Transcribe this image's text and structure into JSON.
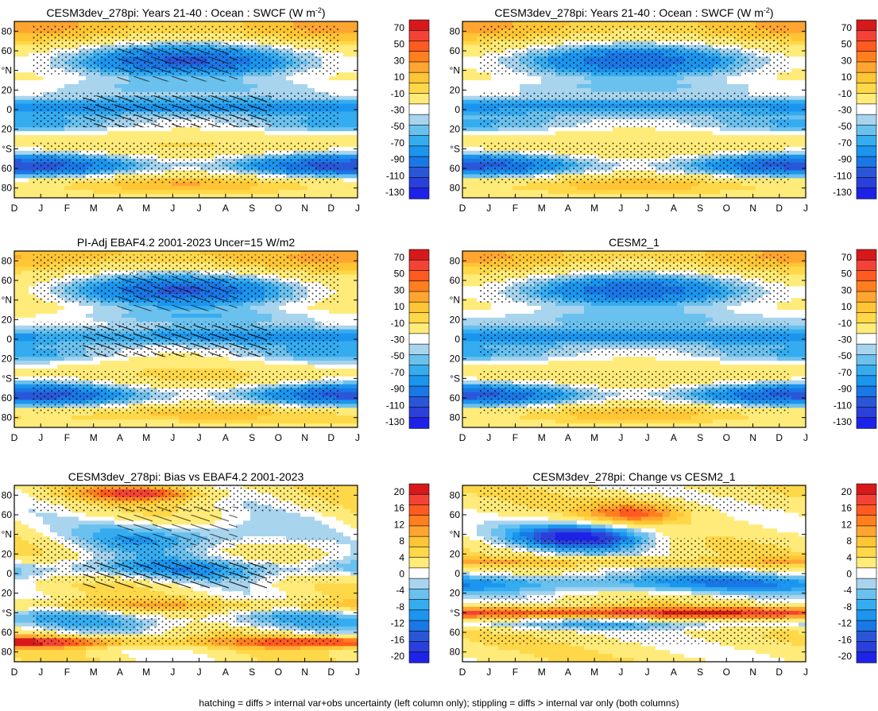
{
  "figure": {
    "footnote": "hatching = diffs > internal var+obs uncertainty (left column only); stippling = diffs > internal var only (both columns)"
  },
  "chart_data": [
    {
      "type": "heatmap",
      "title": "CESM3dev_278pi: Years 21-40 : Ocean : SWCF (W m",
      "title_sup": "-2",
      "title_tail": ")",
      "x_tick_labels": [
        "D",
        "J",
        "F",
        "M",
        "A",
        "M",
        "J",
        "J",
        "A",
        "S",
        "O",
        "N",
        "D",
        "J"
      ],
      "y_tick_labels": [
        "80",
        "60",
        "°N",
        "20",
        "0",
        "20",
        "°S",
        "60",
        "80"
      ],
      "y_tick_values": [
        80,
        60,
        40,
        20,
        0,
        -20,
        -40,
        -60,
        -80
      ],
      "ylim": [
        -90,
        90
      ],
      "colorbar_labels": [
        "70",
        "50",
        "30",
        "10",
        "-10",
        "-30",
        "-50",
        "-70",
        "-90",
        "-110",
        "-130"
      ],
      "colorbar_colors": [
        "#d7191c",
        "#f44336",
        "#ff5a1f",
        "#ff7f1e",
        "#ffa530",
        "#ffc534",
        "#ffd84a",
        "#ffeb7a",
        "#ffffff",
        "#a8d4ee",
        "#6bc1ee",
        "#35acf0",
        "#1b95ee",
        "#1a77e6",
        "#2a57d8",
        "#2b3fdb",
        "#1e22e8"
      ],
      "hatching": true,
      "stippling": true
    },
    {
      "type": "heatmap",
      "title": "CESM3dev_278pi: Years 21-40 : Ocean : SWCF (W m",
      "title_sup": "-2",
      "title_tail": ")",
      "x_tick_labels": [
        "D",
        "J",
        "F",
        "M",
        "A",
        "M",
        "J",
        "J",
        "A",
        "S",
        "O",
        "N",
        "D",
        "J"
      ],
      "y_tick_labels": [
        "80",
        "60",
        "°N",
        "20",
        "0",
        "20",
        "°S",
        "60",
        "80"
      ],
      "y_tick_values": [
        80,
        60,
        40,
        20,
        0,
        -20,
        -40,
        -60,
        -80
      ],
      "ylim": [
        -90,
        90
      ],
      "colorbar_labels": [
        "70",
        "50",
        "30",
        "10",
        "-10",
        "-30",
        "-50",
        "-70",
        "-90",
        "-110",
        "-130"
      ],
      "colorbar_colors": [
        "#d7191c",
        "#f44336",
        "#ff5a1f",
        "#ff7f1e",
        "#ffa530",
        "#ffc534",
        "#ffd84a",
        "#ffeb7a",
        "#ffffff",
        "#a8d4ee",
        "#6bc1ee",
        "#35acf0",
        "#1b95ee",
        "#1a77e6",
        "#2a57d8",
        "#2b3fdb",
        "#1e22e8"
      ],
      "hatching": false,
      "stippling": true
    },
    {
      "type": "heatmap",
      "title": "PI-Adj EBAF4.2 2001-2023 Uncer=15 W/m2",
      "x_tick_labels": [
        "D",
        "J",
        "F",
        "M",
        "A",
        "M",
        "J",
        "J",
        "A",
        "S",
        "O",
        "N",
        "D",
        "J"
      ],
      "y_tick_labels": [
        "80",
        "60",
        "°N",
        "20",
        "0",
        "20",
        "°S",
        "60",
        "80"
      ],
      "y_tick_values": [
        80,
        60,
        40,
        20,
        0,
        -20,
        -40,
        -60,
        -80
      ],
      "ylim": [
        -90,
        90
      ],
      "colorbar_labels": [
        "70",
        "50",
        "30",
        "10",
        "-10",
        "-30",
        "-50",
        "-70",
        "-90",
        "-110",
        "-130"
      ],
      "colorbar_colors": [
        "#d7191c",
        "#f44336",
        "#ff5a1f",
        "#ff7f1e",
        "#ffa530",
        "#ffc534",
        "#ffd84a",
        "#ffeb7a",
        "#ffffff",
        "#a8d4ee",
        "#6bc1ee",
        "#35acf0",
        "#1b95ee",
        "#1a77e6",
        "#2a57d8",
        "#2b3fdb",
        "#1e22e8"
      ],
      "hatching": true,
      "stippling": true
    },
    {
      "type": "heatmap",
      "title": "CESM2_1",
      "x_tick_labels": [
        "D",
        "J",
        "F",
        "M",
        "A",
        "M",
        "J",
        "J",
        "A",
        "S",
        "O",
        "N",
        "D",
        "J"
      ],
      "y_tick_labels": [
        "80",
        "60",
        "°N",
        "20",
        "0",
        "20",
        "°S",
        "60",
        "80"
      ],
      "y_tick_values": [
        80,
        60,
        40,
        20,
        0,
        -20,
        -40,
        -60,
        -80
      ],
      "ylim": [
        -90,
        90
      ],
      "colorbar_labels": [
        "70",
        "50",
        "30",
        "10",
        "-10",
        "-30",
        "-50",
        "-70",
        "-90",
        "-110",
        "-130"
      ],
      "colorbar_colors": [
        "#d7191c",
        "#f44336",
        "#ff5a1f",
        "#ff7f1e",
        "#ffa530",
        "#ffc534",
        "#ffd84a",
        "#ffeb7a",
        "#ffffff",
        "#a8d4ee",
        "#6bc1ee",
        "#35acf0",
        "#1b95ee",
        "#1a77e6",
        "#2a57d8",
        "#2b3fdb",
        "#1e22e8"
      ],
      "hatching": false,
      "stippling": true
    },
    {
      "type": "heatmap",
      "title": "CESM3dev_278pi: Bias vs EBAF4.2 2001-2023",
      "x_tick_labels": [
        "D",
        "J",
        "F",
        "M",
        "A",
        "M",
        "J",
        "J",
        "A",
        "S",
        "O",
        "N",
        "D",
        "J"
      ],
      "y_tick_labels": [
        "80",
        "60",
        "°N",
        "20",
        "0",
        "20",
        "°S",
        "60",
        "80"
      ],
      "y_tick_values": [
        80,
        60,
        40,
        20,
        0,
        -20,
        -40,
        -60,
        -80
      ],
      "ylim": [
        -90,
        90
      ],
      "colorbar_labels": [
        "20",
        "16",
        "12",
        "8",
        "4",
        "0",
        "-4",
        "-8",
        "-12",
        "-16",
        "-20"
      ],
      "colorbar_colors": [
        "#d7191c",
        "#f44336",
        "#ff5a1f",
        "#ff7f1e",
        "#ffa530",
        "#ffc534",
        "#ffd84a",
        "#ffeb7a",
        "#ffffff",
        "#a8d4ee",
        "#6bc1ee",
        "#35acf0",
        "#1b95ee",
        "#1a77e6",
        "#2a57d8",
        "#2b3fdb",
        "#1e22e8"
      ],
      "hatching": true,
      "stippling": true
    },
    {
      "type": "heatmap",
      "title": "CESM3dev_278pi: Change vs CESM2_1",
      "x_tick_labels": [
        "D",
        "J",
        "F",
        "M",
        "A",
        "M",
        "J",
        "J",
        "A",
        "S",
        "O",
        "N",
        "D",
        "J"
      ],
      "y_tick_labels": [
        "80",
        "60",
        "°N",
        "20",
        "0",
        "20",
        "°S",
        "60",
        "80"
      ],
      "y_tick_values": [
        80,
        60,
        40,
        20,
        0,
        -20,
        -40,
        -60,
        -80
      ],
      "ylim": [
        -90,
        90
      ],
      "colorbar_labels": [
        "20",
        "16",
        "12",
        "8",
        "4",
        "0",
        "-4",
        "-8",
        "-12",
        "-16",
        "-20"
      ],
      "colorbar_colors": [
        "#d7191c",
        "#f44336",
        "#ff5a1f",
        "#ff7f1e",
        "#ffa530",
        "#ffc534",
        "#ffd84a",
        "#ffeb7a",
        "#ffffff",
        "#a8d4ee",
        "#6bc1ee",
        "#35acf0",
        "#1b95ee",
        "#1a77e6",
        "#2a57d8",
        "#2b3fdb",
        "#1e22e8"
      ],
      "hatching": false,
      "stippling": true
    }
  ]
}
